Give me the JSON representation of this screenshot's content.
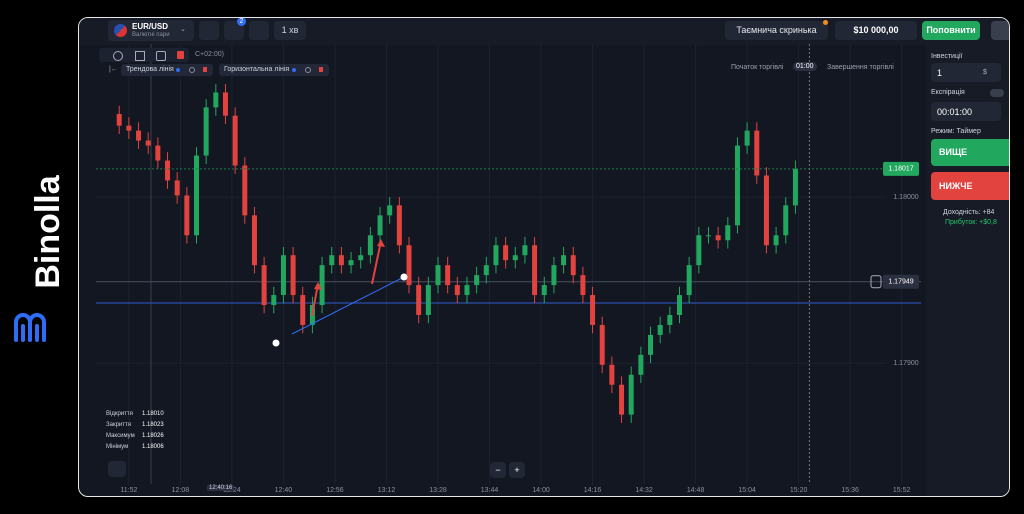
{
  "brand": {
    "name": "Binolla"
  },
  "header": {
    "pair": "EUR/USD",
    "pair_type": "Валютні пари",
    "badge": "2",
    "timeframe": "1 хв",
    "mystery_box": "Таємнича скринька",
    "balance": "$10 000,00",
    "deposit": "Поповнити"
  },
  "sidebar": {
    "investment_label": "Інвестиції",
    "investment": "1",
    "currency": "$",
    "expiration_label": "Експірація",
    "expiration": "00:01:00",
    "mode": "Режим: Таймер",
    "up": "ВИЩЕ",
    "down": "НИЖЧЕ",
    "payout": "Доходність: +84",
    "profit": "Прибуток: +$0,8"
  },
  "tools": {
    "timezone": "C+02:00)",
    "trend_line": "Трендова лінія",
    "horizontal_line": "Горизонтальна лінія"
  },
  "trade_window": {
    "start": "Початок торгівлі",
    "time": "01:00",
    "end": "Завершення торгівлі"
  },
  "ohlc_panel": [
    [
      "Відкриття",
      "1.18010"
    ],
    [
      "Закриття",
      "1.18023"
    ],
    [
      "Максимум",
      "1.18026"
    ],
    [
      "Мінімум",
      "1.18006"
    ]
  ],
  "crosshair_time": "12:40:16",
  "zoom": [
    "−",
    "+"
  ],
  "chart_data": {
    "type": "candlestick",
    "up_color": "#22a75f",
    "down_color": "#e2433f",
    "x": [
      "11:49",
      "11:52",
      "11:55",
      "11:58",
      "12:01",
      "12:04",
      "12:07",
      "12:10",
      "12:13",
      "12:16",
      "12:19",
      "12:22",
      "12:25",
      "12:28",
      "12:31",
      "12:34",
      "12:37",
      "12:40",
      "12:43",
      "12:46",
      "12:49",
      "12:52",
      "12:55",
      "12:58",
      "13:01",
      "13:04",
      "13:07",
      "13:10",
      "13:13",
      "13:16",
      "13:19",
      "13:22",
      "13:25",
      "13:28",
      "13:31",
      "13:34",
      "13:37",
      "13:40",
      "13:43",
      "13:46",
      "13:49",
      "13:52",
      "13:55",
      "13:58",
      "14:01",
      "14:04",
      "14:07",
      "14:10",
      "14:13",
      "14:16",
      "14:19",
      "14:22",
      "14:25",
      "14:28",
      "14:31",
      "14:34",
      "14:37",
      "14:40",
      "14:43",
      "14:46",
      "14:49",
      "14:52",
      "14:55",
      "14:58",
      "15:01",
      "15:04",
      "15:07",
      "15:10",
      "15:13",
      "15:16",
      "15:19"
    ],
    "open": [
      1.1805,
      1.18043,
      1.1804,
      1.18034,
      1.18031,
      1.18022,
      1.1801,
      1.18001,
      1.17977,
      1.18025,
      1.18054,
      1.18063,
      1.18049,
      1.18019,
      1.17989,
      1.17959,
      1.17935,
      1.17941,
      1.17965,
      1.17941,
      1.17923,
      1.17935,
      1.17959,
      1.17965,
      1.17959,
      1.17962,
      1.17965,
      1.17977,
      1.17989,
      1.17995,
      1.17971,
      1.17947,
      1.17929,
      1.17947,
      1.17959,
      1.17947,
      1.17941,
      1.17947,
      1.17953,
      1.17959,
      1.17971,
      1.17962,
      1.17965,
      1.17971,
      1.17941,
      1.17947,
      1.17959,
      1.17965,
      1.17953,
      1.17941,
      1.17923,
      1.17899,
      1.17887,
      1.17869,
      1.17893,
      1.17905,
      1.17917,
      1.17923,
      1.17929,
      1.17941,
      1.17959,
      1.17977,
      1.17977,
      1.17974,
      1.17983,
      1.18031,
      1.1804,
      1.18013,
      1.17971,
      1.17977,
      1.17995
    ],
    "high": [
      1.18055,
      1.18048,
      1.18045,
      1.18039,
      1.18036,
      1.18027,
      1.18015,
      1.18006,
      1.1803,
      1.18059,
      1.18068,
      1.18068,
      1.18054,
      1.18024,
      1.17994,
      1.17964,
      1.17946,
      1.1797,
      1.1797,
      1.17946,
      1.1794,
      1.17964,
      1.1797,
      1.1797,
      1.17967,
      1.1797,
      1.17982,
      1.17994,
      1.18,
      1.18,
      1.17976,
      1.17952,
      1.17952,
      1.17964,
      1.17964,
      1.17952,
      1.17952,
      1.17958,
      1.17964,
      1.17976,
      1.17976,
      1.1797,
      1.17976,
      1.17976,
      1.17952,
      1.17964,
      1.1797,
      1.1797,
      1.17958,
      1.17946,
      1.17928,
      1.17904,
      1.17892,
      1.17898,
      1.1791,
      1.17922,
      1.17928,
      1.17934,
      1.17946,
      1.17964,
      1.17982,
      1.17982,
      1.17982,
      1.17988,
      1.18036,
      1.18045,
      1.18045,
      1.18018,
      1.17982,
      1.18,
      1.18022
    ],
    "low": [
      1.18038,
      1.18035,
      1.18029,
      1.18026,
      1.18017,
      1.18005,
      1.17996,
      1.17972,
      1.17972,
      1.1802,
      1.18049,
      1.18044,
      1.18014,
      1.17984,
      1.17954,
      1.1793,
      1.1793,
      1.17936,
      1.17936,
      1.17918,
      1.17918,
      1.1793,
      1.17954,
      1.17954,
      1.17954,
      1.17957,
      1.1796,
      1.17972,
      1.17984,
      1.17966,
      1.17942,
      1.17924,
      1.17924,
      1.17942,
      1.17942,
      1.17936,
      1.17936,
      1.17942,
      1.17948,
      1.17954,
      1.17957,
      1.17957,
      1.1796,
      1.17936,
      1.17936,
      1.17942,
      1.17954,
      1.17948,
      1.17936,
      1.17918,
      1.17894,
      1.17882,
      1.17864,
      1.17864,
      1.17888,
      1.179,
      1.17912,
      1.17918,
      1.17924,
      1.17936,
      1.17954,
      1.17972,
      1.17969,
      1.17969,
      1.17978,
      1.18026,
      1.18008,
      1.17966,
      1.17966,
      1.17972,
      1.1799
    ],
    "close": [
      1.18043,
      1.1804,
      1.18034,
      1.18031,
      1.18022,
      1.1801,
      1.18001,
      1.17977,
      1.18025,
      1.18054,
      1.18063,
      1.18049,
      1.18019,
      1.17989,
      1.17959,
      1.17935,
      1.17941,
      1.17965,
      1.17941,
      1.17923,
      1.17935,
      1.17959,
      1.17965,
      1.17959,
      1.17962,
      1.17965,
      1.17977,
      1.17989,
      1.17995,
      1.17971,
      1.17947,
      1.17929,
      1.17947,
      1.17959,
      1.17947,
      1.17941,
      1.17947,
      1.17953,
      1.17959,
      1.17971,
      1.17962,
      1.17965,
      1.17971,
      1.17941,
      1.17947,
      1.17959,
      1.17965,
      1.17953,
      1.17941,
      1.17923,
      1.17899,
      1.17887,
      1.17869,
      1.17893,
      1.17905,
      1.17917,
      1.17923,
      1.17929,
      1.17941,
      1.17959,
      1.17977,
      1.17977,
      1.17974,
      1.17983,
      1.18031,
      1.1804,
      1.18013,
      1.17971,
      1.17977,
      1.17995,
      1.18017
    ],
    "xlim": [
      "11:48",
      "15:58"
    ],
    "xticks": [
      "11:52",
      "12:08",
      "12:24",
      "12:40",
      "12:56",
      "13:12",
      "13:28",
      "13:44",
      "14:00",
      "14:16",
      "14:32",
      "14:48",
      "15:04",
      "15:20",
      "15:36",
      "15:52"
    ],
    "ylim": [
      1.1782,
      1.181
    ],
    "yticks": [
      {
        "value": 1.18,
        "label": "1.18000"
      },
      {
        "value": 1.179,
        "label": "1.17900"
      }
    ],
    "current_price": 1.18017,
    "line_price": 1.17949
  }
}
